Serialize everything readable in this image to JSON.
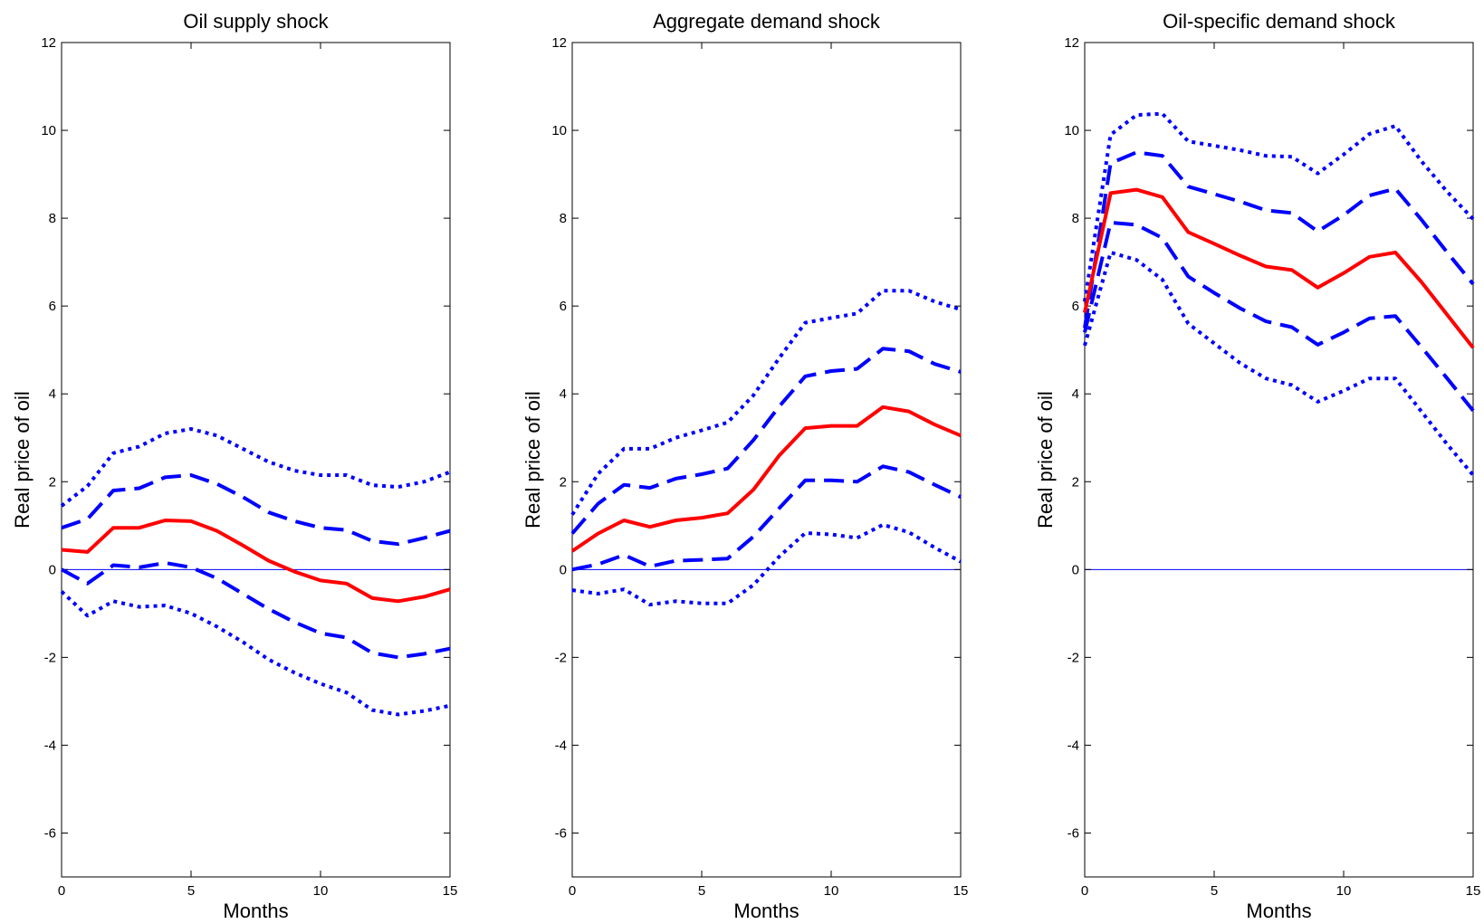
{
  "colors": {
    "point_estimate": "#ff0000",
    "bands": "#0000ff",
    "zero_line": "#0000ff",
    "axes": "#000000"
  },
  "chart_data": [
    {
      "type": "line",
      "title": "Oil supply shock",
      "xlabel": "Months",
      "ylabel": "Real price of oil",
      "xlim": [
        0,
        15
      ],
      "ylim": [
        -7,
        12
      ],
      "xticks": [
        0,
        5,
        10,
        15
      ],
      "yticks": [
        -6,
        -4,
        -2,
        0,
        2,
        4,
        6,
        8,
        10,
        12
      ],
      "zero_line": true,
      "grid": false,
      "x": [
        0,
        1,
        2,
        3,
        4,
        5,
        6,
        7,
        8,
        9,
        10,
        11,
        12,
        13,
        14,
        15
      ],
      "series": [
        {
          "style": "solid",
          "color": "#ff0000",
          "values": [
            0.45,
            0.4,
            0.95,
            0.95,
            1.12,
            1.1,
            0.88,
            0.55,
            0.2,
            -0.05,
            -0.25,
            -0.32,
            -0.65,
            -0.72,
            -0.62,
            -0.45
          ]
        },
        {
          "style": "dashed",
          "color": "#0000ff",
          "values": [
            0.95,
            1.15,
            1.8,
            1.85,
            2.1,
            2.15,
            1.95,
            1.65,
            1.3,
            1.1,
            0.95,
            0.9,
            0.65,
            0.58,
            0.72,
            0.88
          ]
        },
        {
          "style": "dashed",
          "color": "#0000ff",
          "values": [
            0,
            -0.32,
            0.1,
            0.05,
            0.15,
            0.05,
            -0.2,
            -0.55,
            -0.9,
            -1.2,
            -1.45,
            -1.55,
            -1.9,
            -2.0,
            -1.92,
            -1.8
          ]
        },
        {
          "style": "dotted",
          "color": "#0000ff",
          "values": [
            1.45,
            1.9,
            2.65,
            2.8,
            3.1,
            3.2,
            3.05,
            2.75,
            2.45,
            2.25,
            2.15,
            2.15,
            1.92,
            1.88,
            2.0,
            2.22
          ]
        },
        {
          "style": "dotted",
          "color": "#0000ff",
          "values": [
            -0.5,
            -1.05,
            -0.72,
            -0.85,
            -0.82,
            -1.0,
            -1.3,
            -1.65,
            -2.05,
            -2.35,
            -2.6,
            -2.8,
            -3.2,
            -3.3,
            -3.22,
            -3.1
          ]
        }
      ]
    },
    {
      "type": "line",
      "title": "Aggregate demand shock",
      "xlabel": "Months",
      "ylabel": "Real price of oil",
      "xlim": [
        0,
        15
      ],
      "ylim": [
        -7,
        12
      ],
      "xticks": [
        0,
        5,
        10,
        15
      ],
      "yticks": [
        -6,
        -4,
        -2,
        0,
        2,
        4,
        6,
        8,
        10,
        12
      ],
      "zero_line": true,
      "grid": false,
      "x": [
        0,
        1,
        2,
        3,
        4,
        5,
        6,
        7,
        8,
        9,
        10,
        11,
        12,
        13,
        14,
        15
      ],
      "series": [
        {
          "style": "solid",
          "color": "#ff0000",
          "values": [
            0.42,
            0.82,
            1.12,
            0.97,
            1.12,
            1.18,
            1.28,
            1.82,
            2.6,
            3.22,
            3.27,
            3.27,
            3.7,
            3.6,
            3.3,
            3.05
          ]
        },
        {
          "style": "dashed",
          "color": "#0000ff",
          "values": [
            0.82,
            1.5,
            1.93,
            1.86,
            2.07,
            2.17,
            2.3,
            2.95,
            3.72,
            4.4,
            4.52,
            4.57,
            5.03,
            4.97,
            4.68,
            4.5
          ]
        },
        {
          "style": "dashed",
          "color": "#0000ff",
          "values": [
            0,
            0.12,
            0.33,
            0.07,
            0.2,
            0.22,
            0.25,
            0.75,
            1.4,
            2.03,
            2.03,
            2.0,
            2.35,
            2.22,
            1.93,
            1.65
          ]
        },
        {
          "style": "dotted",
          "color": "#0000ff",
          "values": [
            1.25,
            2.18,
            2.75,
            2.75,
            3.0,
            3.17,
            3.35,
            3.97,
            4.82,
            5.62,
            5.73,
            5.83,
            6.35,
            6.35,
            6.1,
            5.92
          ]
        },
        {
          "style": "dotted",
          "color": "#0000ff",
          "values": [
            -0.47,
            -0.55,
            -0.45,
            -0.8,
            -0.72,
            -0.77,
            -0.77,
            -0.35,
            0.3,
            0.83,
            0.8,
            0.72,
            1.02,
            0.85,
            0.5,
            0.18
          ]
        }
      ]
    },
    {
      "type": "line",
      "title": "Oil-specific demand shock",
      "xlabel": "Months",
      "ylabel": "Real price of oil",
      "xlim": [
        0,
        15
      ],
      "ylim": [
        -7,
        12
      ],
      "xticks": [
        0,
        5,
        10,
        15
      ],
      "yticks": [
        -6,
        -4,
        -2,
        0,
        2,
        4,
        6,
        8,
        10,
        12
      ],
      "zero_line": true,
      "grid": false,
      "x": [
        0,
        1,
        2,
        3,
        4,
        5,
        6,
        7,
        8,
        9,
        10,
        11,
        12,
        13,
        14,
        15
      ],
      "series": [
        {
          "style": "solid",
          "color": "#ff0000",
          "values": [
            5.85,
            8.57,
            8.65,
            8.48,
            7.68,
            7.42,
            7.15,
            6.9,
            6.82,
            6.42,
            6.75,
            7.12,
            7.22,
            6.55,
            5.8,
            5.05
          ]
        },
        {
          "style": "dashed",
          "color": "#0000ff",
          "values": [
            5.5,
            9.25,
            9.5,
            9.42,
            8.72,
            8.55,
            8.38,
            8.18,
            8.12,
            7.7,
            8.07,
            8.52,
            8.67,
            7.97,
            7.22,
            6.5
          ]
        },
        {
          "style": "dashed",
          "color": "#0000ff",
          "values": [
            5.4,
            7.9,
            7.85,
            7.55,
            6.67,
            6.3,
            5.95,
            5.65,
            5.52,
            5.12,
            5.4,
            5.72,
            5.77,
            5.07,
            4.35,
            3.62
          ]
        },
        {
          "style": "dotted",
          "color": "#0000ff",
          "values": [
            6.1,
            9.9,
            10.35,
            10.38,
            9.75,
            9.65,
            9.55,
            9.42,
            9.4,
            9.02,
            9.45,
            9.92,
            10.1,
            9.3,
            8.6,
            7.98
          ]
        },
        {
          "style": "dotted",
          "color": "#0000ff",
          "values": [
            5.1,
            7.22,
            7.05,
            6.6,
            5.6,
            5.15,
            4.7,
            4.35,
            4.2,
            3.82,
            4.07,
            4.35,
            4.35,
            3.6,
            2.85,
            2.15
          ]
        }
      ]
    }
  ]
}
